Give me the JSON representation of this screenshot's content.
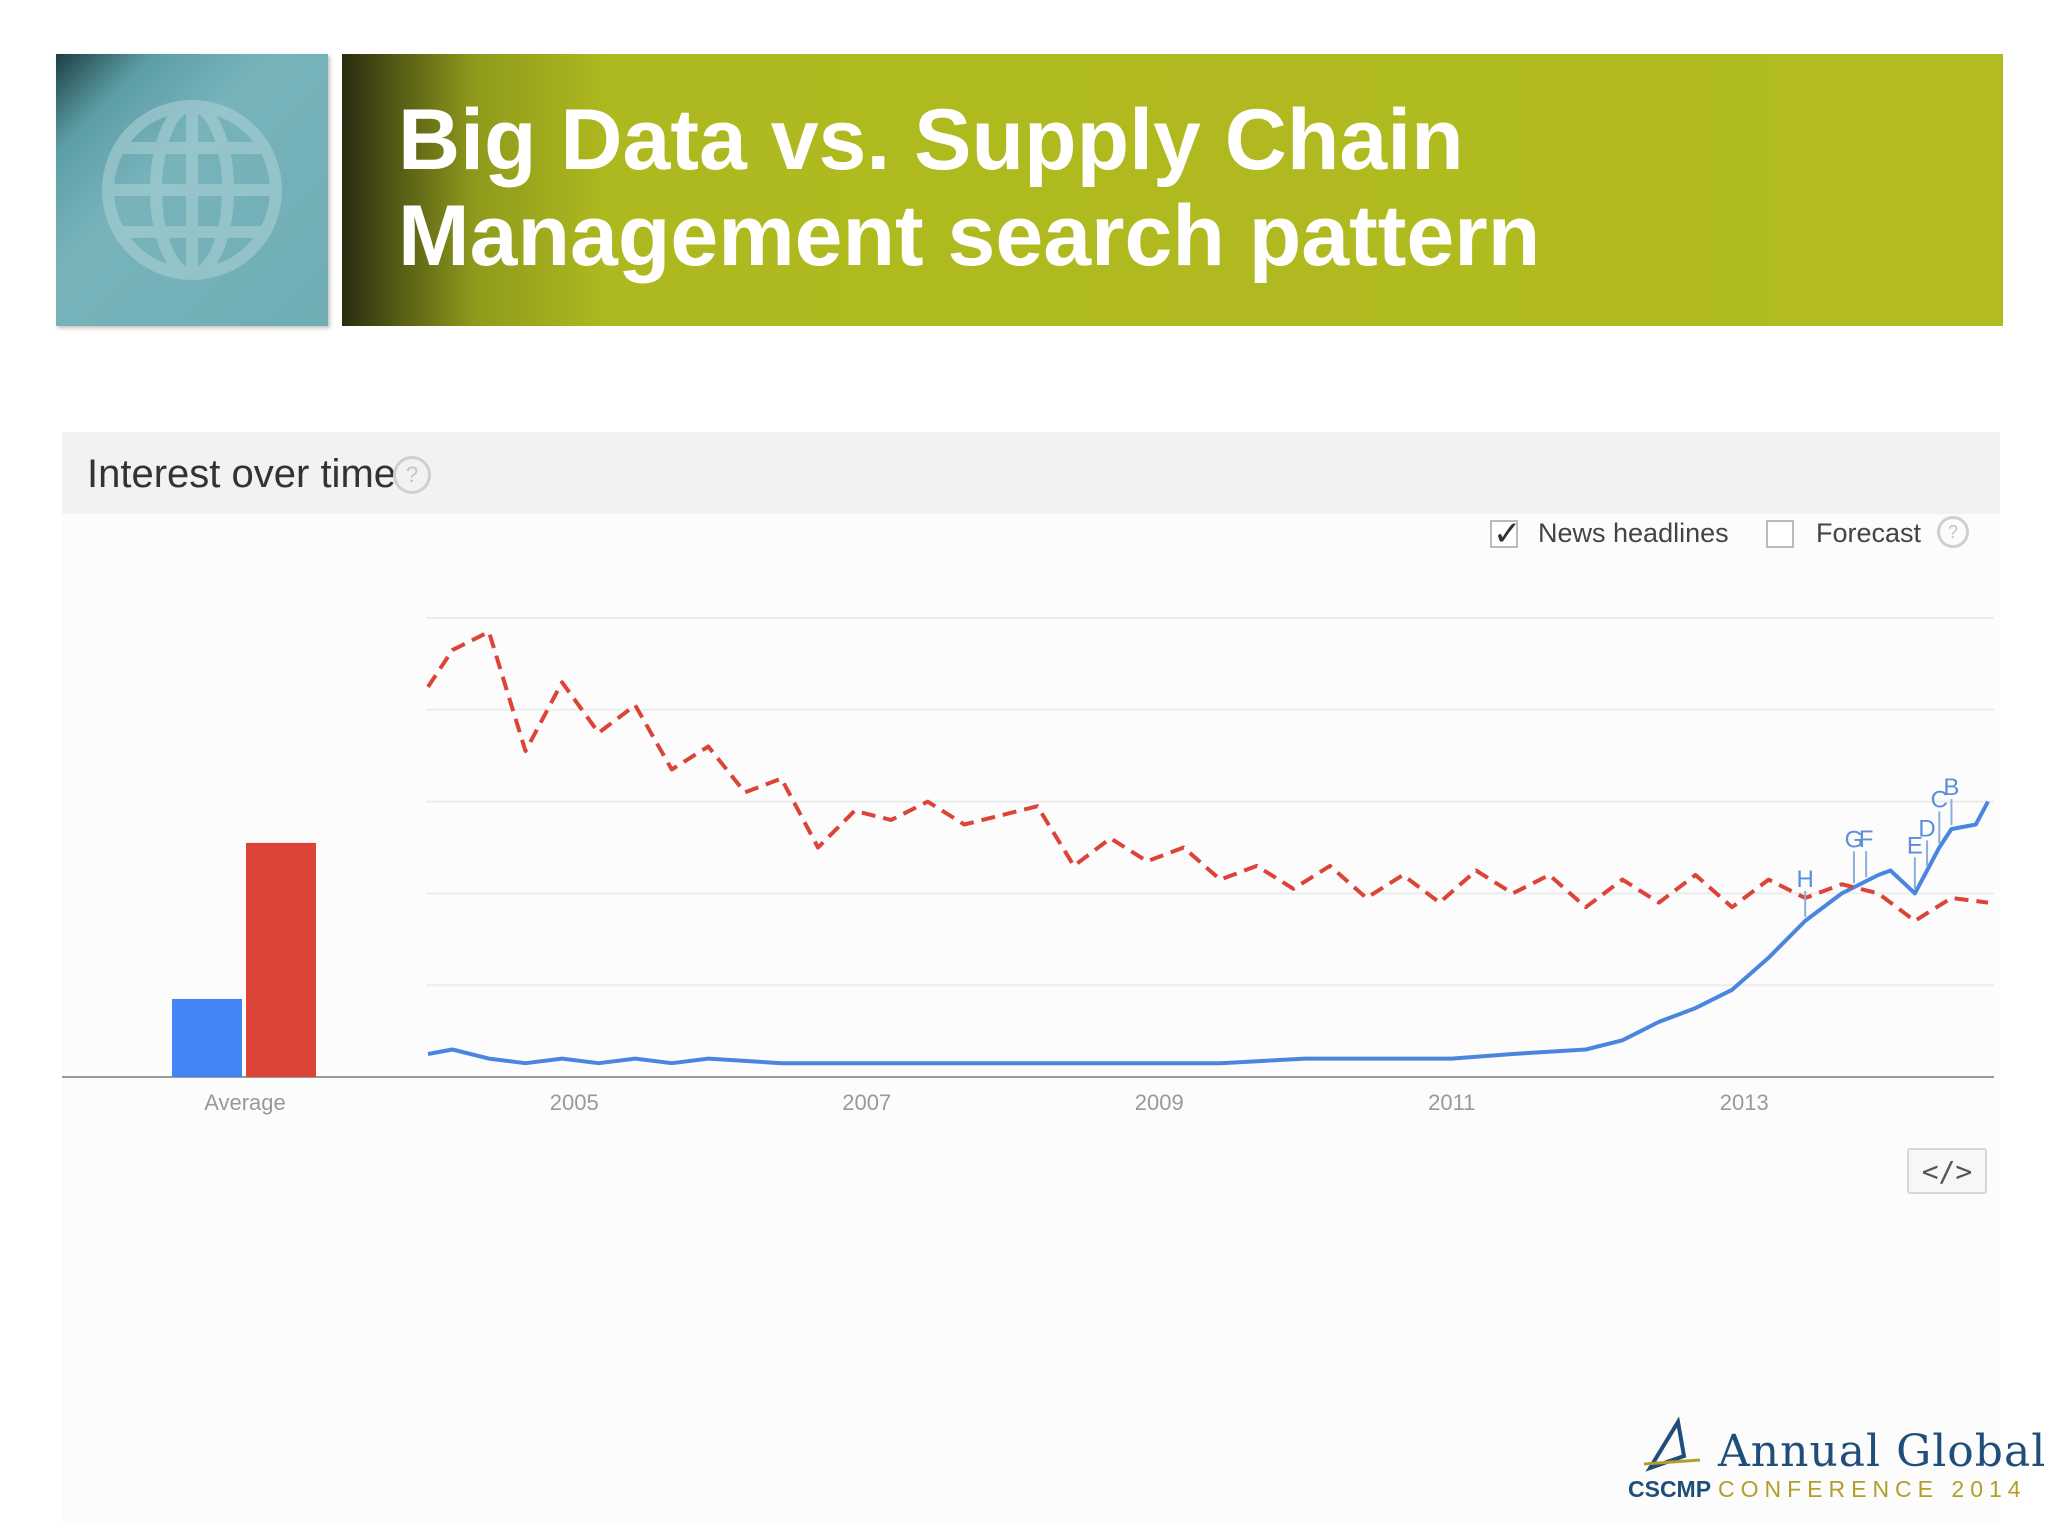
{
  "slide": {
    "title_line1": "Big Data vs. Supply Chain",
    "title_line2": "Management search pattern",
    "accent_color": "#b2bc20",
    "globe_color": "#78b3ba"
  },
  "panel": {
    "title": "Interest over time",
    "help_glyph": "?",
    "options": {
      "news_headlines": {
        "label": "News headlines",
        "checked": true
      },
      "forecast": {
        "label": "Forecast",
        "checked": false
      }
    },
    "embed_label": "</>"
  },
  "logo": {
    "line1": "Annual Global",
    "line2": "CONFERENCE 2014",
    "org": "CSCMP"
  },
  "chart_data": {
    "type": "line",
    "x_axis_type": "date",
    "xlim": [
      "2004-01",
      "2014-09"
    ],
    "ylim": [
      0,
      100
    ],
    "grid": true,
    "tick_labels": [
      "2005",
      "2007",
      "2009",
      "2011",
      "2013"
    ],
    "tick_dates": [
      "2005-01",
      "2007-01",
      "2009-01",
      "2011-01",
      "2013-01"
    ],
    "average_bars": {
      "label": "Average",
      "values": [
        17,
        51
      ],
      "colors": [
        "#4285f4",
        "#db4437"
      ]
    },
    "series": [
      {
        "color": "#4a86e0",
        "style": "solid",
        "points": [
          [
            "2004-01",
            5
          ],
          [
            "2004-03",
            6
          ],
          [
            "2004-06",
            4
          ],
          [
            "2004-09",
            3
          ],
          [
            "2004-12",
            4
          ],
          [
            "2005-03",
            3
          ],
          [
            "2005-06",
            4
          ],
          [
            "2005-09",
            3
          ],
          [
            "2005-12",
            4
          ],
          [
            "2006-06",
            3
          ],
          [
            "2006-12",
            3
          ],
          [
            "2007-06",
            3
          ],
          [
            "2008-01",
            3
          ],
          [
            "2008-06",
            3
          ],
          [
            "2009-01",
            3
          ],
          [
            "2009-06",
            3
          ],
          [
            "2010-01",
            4
          ],
          [
            "2010-06",
            4
          ],
          [
            "2011-01",
            4
          ],
          [
            "2011-06",
            5
          ],
          [
            "2011-12",
            6
          ],
          [
            "2012-03",
            8
          ],
          [
            "2012-06",
            12
          ],
          [
            "2012-09",
            15
          ],
          [
            "2012-12",
            19
          ],
          [
            "2013-03",
            26
          ],
          [
            "2013-06",
            34
          ],
          [
            "2013-09",
            40
          ],
          [
            "2013-12",
            44
          ],
          [
            "2014-01",
            45
          ],
          [
            "2014-03",
            40
          ],
          [
            "2014-05",
            50
          ],
          [
            "2014-06",
            54
          ],
          [
            "2014-08",
            55
          ],
          [
            "2014-09",
            60
          ]
        ]
      },
      {
        "color": "#db4437",
        "style": "dashed",
        "points": [
          [
            "2004-01",
            85
          ],
          [
            "2004-03",
            93
          ],
          [
            "2004-06",
            97
          ],
          [
            "2004-09",
            71
          ],
          [
            "2004-12",
            86
          ],
          [
            "2005-03",
            75
          ],
          [
            "2005-06",
            81
          ],
          [
            "2005-09",
            67
          ],
          [
            "2005-12",
            72
          ],
          [
            "2006-03",
            62
          ],
          [
            "2006-06",
            65
          ],
          [
            "2006-09",
            50
          ],
          [
            "2006-12",
            58
          ],
          [
            "2007-03",
            56
          ],
          [
            "2007-06",
            60
          ],
          [
            "2007-09",
            55
          ],
          [
            "2007-12",
            57
          ],
          [
            "2008-03",
            59
          ],
          [
            "2008-06",
            46
          ],
          [
            "2008-09",
            52
          ],
          [
            "2008-12",
            47
          ],
          [
            "2009-03",
            50
          ],
          [
            "2009-06",
            43
          ],
          [
            "2009-09",
            46
          ],
          [
            "2009-12",
            41
          ],
          [
            "2010-03",
            46
          ],
          [
            "2010-06",
            39
          ],
          [
            "2010-09",
            44
          ],
          [
            "2010-12",
            38
          ],
          [
            "2011-03",
            45
          ],
          [
            "2011-06",
            40
          ],
          [
            "2011-09",
            44
          ],
          [
            "2011-12",
            37
          ],
          [
            "2012-03",
            43
          ],
          [
            "2012-06",
            38
          ],
          [
            "2012-09",
            44
          ],
          [
            "2012-12",
            37
          ],
          [
            "2013-03",
            43
          ],
          [
            "2013-06",
            39
          ],
          [
            "2013-09",
            42
          ],
          [
            "2013-12",
            40
          ],
          [
            "2014-03",
            34
          ],
          [
            "2014-06",
            39
          ],
          [
            "2014-09",
            38
          ]
        ]
      }
    ],
    "annotations": [
      {
        "label": "H",
        "date": "2013-06"
      },
      {
        "label": "G",
        "date": "2013-10"
      },
      {
        "label": "F",
        "date": "2013-11"
      },
      {
        "label": "E",
        "date": "2014-03"
      },
      {
        "label": "D",
        "date": "2014-04"
      },
      {
        "label": "C",
        "date": "2014-05"
      },
      {
        "label": "B",
        "date": "2014-06"
      }
    ]
  }
}
